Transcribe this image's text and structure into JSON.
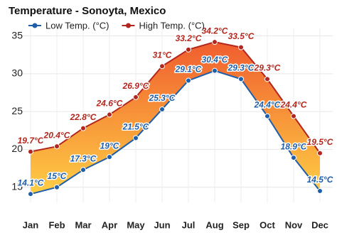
{
  "chart_data": {
    "type": "line",
    "title": "Temperature - Sonoyta, Mexico",
    "categories": [
      "Jan",
      "Feb",
      "Mar",
      "Apr",
      "May",
      "Jun",
      "Jul",
      "Aug",
      "Sep",
      "Oct",
      "Nov",
      "Dec"
    ],
    "series": [
      {
        "name": "Low Temp. (°C)",
        "color": "#1f5ea8",
        "values": [
          14.1,
          15,
          17.3,
          19,
          21.5,
          25.3,
          29.1,
          30.4,
          29.3,
          24.4,
          18.9,
          14.5
        ],
        "value_labels": [
          "14.1°C",
          "15°C",
          "17.3°C",
          "19°C",
          "21.5°C",
          "25.3°C",
          "29.1°C",
          "30.4°C",
          "29.3°C",
          "24.4°C",
          "18.9°C",
          "14.5°C"
        ]
      },
      {
        "name": "High Temp. (°C)",
        "color": "#b3261e",
        "values": [
          19.7,
          20.4,
          22.8,
          24.6,
          26.9,
          31,
          33.2,
          34.2,
          33.5,
          29.3,
          24.4,
          19.5
        ],
        "value_labels": [
          "19.7°C",
          "20.4°C",
          "22.8°C",
          "24.6°C",
          "26.9°C",
          "31°C",
          "33.2°C",
          "34.2°C",
          "33.5°C",
          "29.3°C",
          "24.4°C",
          "19.5°C"
        ]
      }
    ],
    "fill_colors": [
      "#ffd23c",
      "#ee4a22"
    ],
    "ylim": [
      13,
      36
    ],
    "yticks": [
      15,
      20,
      25,
      30,
      35
    ],
    "grid": true,
    "legend_position": "top-left"
  }
}
